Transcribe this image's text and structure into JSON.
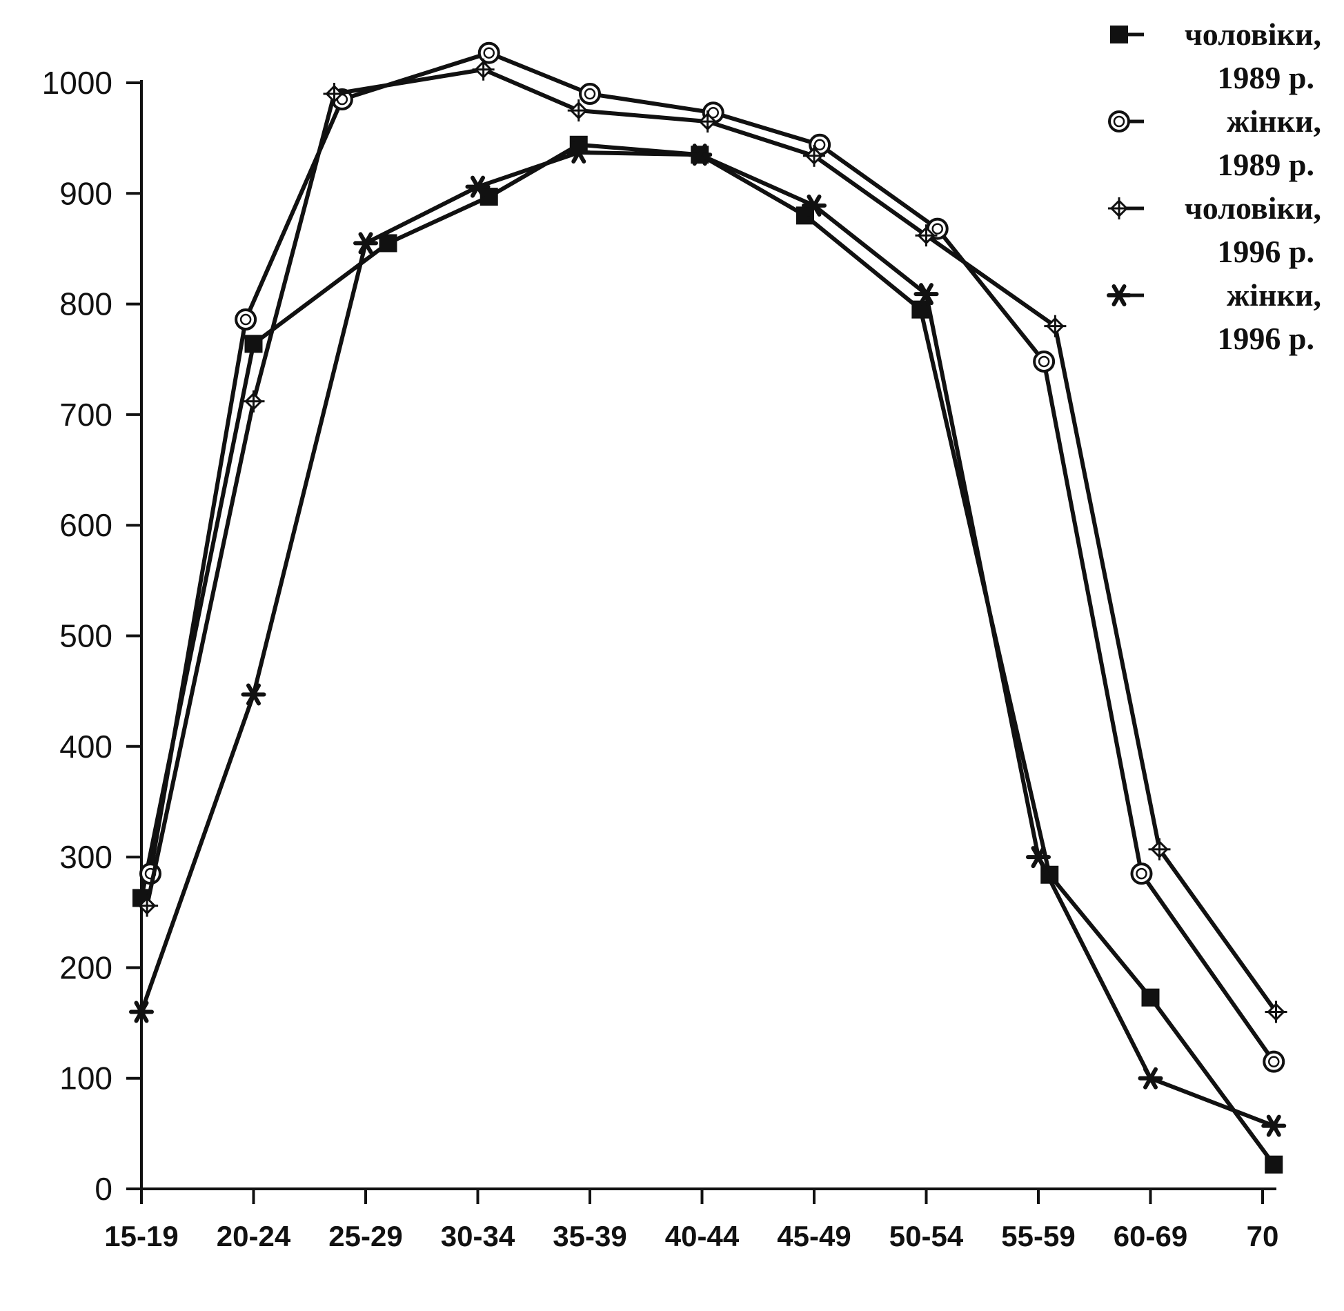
{
  "chart_data": {
    "type": "line",
    "categories": [
      "15-19",
      "20-24",
      "25-29",
      "30-34",
      "35-39",
      "40-44",
      "45-49",
      "50-54",
      "55-59",
      "60-69",
      "70"
    ],
    "ylim": [
      0,
      1000
    ],
    "yticks": [
      0,
      100,
      200,
      300,
      400,
      500,
      600,
      700,
      800,
      900,
      1000
    ],
    "grid": false,
    "legend_position": "top-right",
    "series": [
      {
        "name": "чоловіки, 1989 р.",
        "legend_lines": [
          "чоловіки,",
          "1989 р."
        ],
        "marker": "square",
        "x_positions": [
          0,
          1,
          2.2,
          3.1,
          3.9,
          4.98,
          5.92,
          6.95,
          8.1,
          9.0,
          10.1
        ],
        "values": [
          263,
          764,
          855,
          897,
          944,
          935,
          880,
          795,
          284,
          173,
          22
        ]
      },
      {
        "name": "жінки, 1989 р.",
        "legend_lines": [
          "жінки,",
          "1989 р."
        ],
        "marker": "circle",
        "x_positions": [
          0.08,
          0.93,
          1.79,
          3.1,
          4.0,
          5.1,
          6.05,
          7.1,
          8.05,
          8.92,
          10.1
        ],
        "values": [
          285,
          786,
          985,
          1027,
          990,
          973,
          944,
          868,
          748,
          285,
          115
        ]
      },
      {
        "name": "чоловіки, 1996 р.",
        "legend_lines": [
          "чоловіки,",
          "1996 р."
        ],
        "marker": "diamond-cross",
        "x_positions": [
          0.05,
          1.0,
          1.72,
          3.05,
          3.9,
          5.05,
          6.0,
          7.0,
          8.15,
          9.08,
          10.12
        ],
        "values": [
          256,
          712,
          990,
          1012,
          975,
          965,
          934,
          862,
          780,
          307,
          160
        ]
      },
      {
        "name": "жінки, 1996 р.",
        "legend_lines": [
          "жінки,",
          "1996 р."
        ],
        "marker": "star",
        "x_positions": [
          0,
          1.0,
          2.0,
          3.0,
          3.9,
          4.98,
          6.0,
          7.0,
          8.0,
          9.0,
          10.1
        ],
        "values": [
          160,
          447,
          855,
          906,
          937,
          935,
          889,
          809,
          300,
          100,
          57
        ]
      }
    ]
  }
}
